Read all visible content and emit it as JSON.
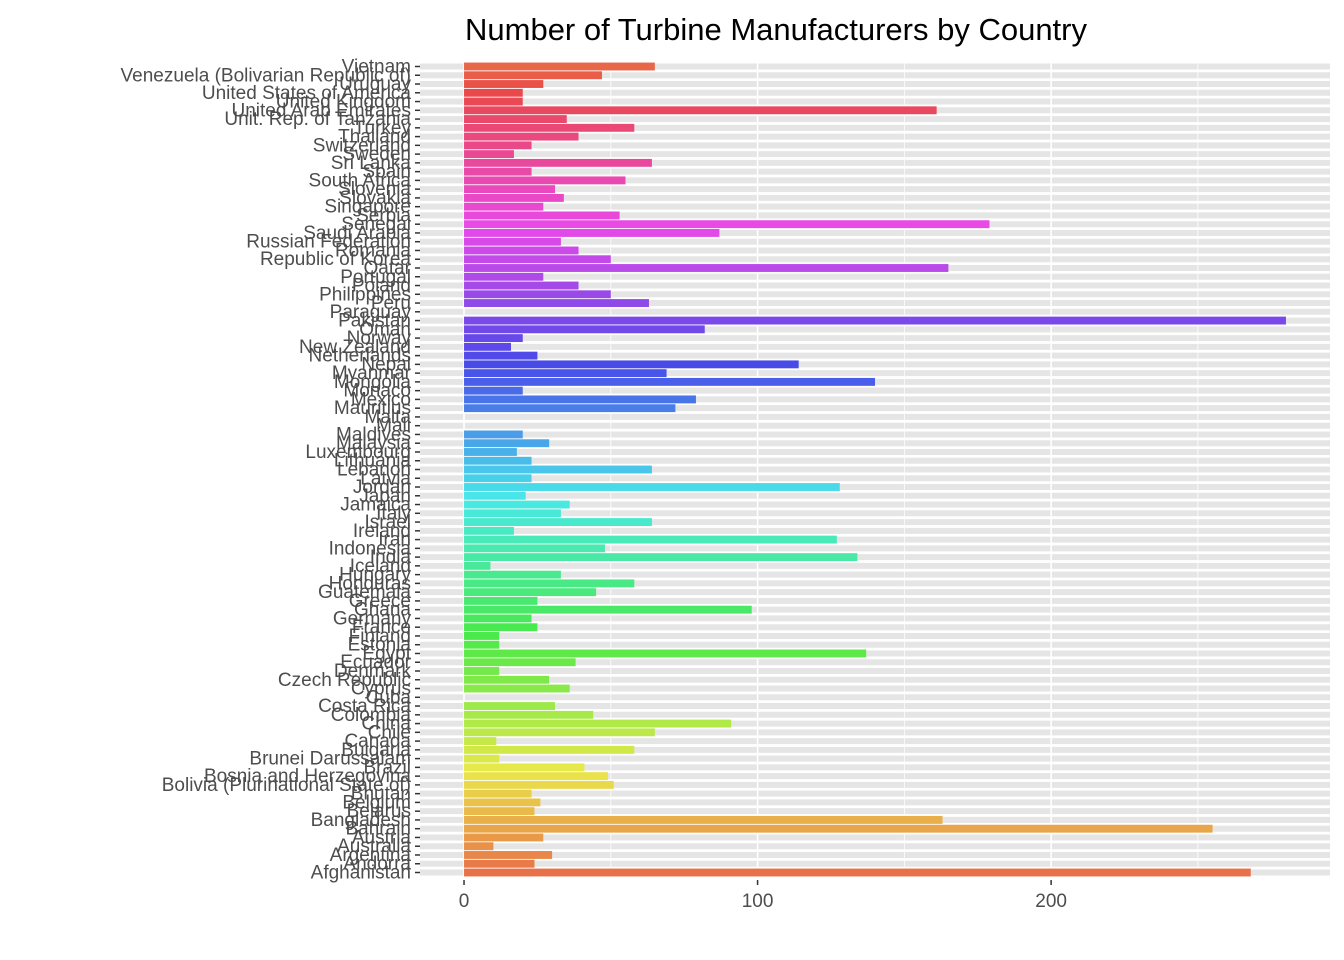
{
  "chart_data": {
    "type": "bar",
    "orientation": "horizontal",
    "title": "Number of Turbine Manufacturers by Country",
    "xlabel": "",
    "ylabel": "",
    "xlim": [
      -15,
      295
    ],
    "xticks": [
      0,
      100,
      200
    ],
    "grid": true,
    "legend": "none",
    "categories": [
      "Afghanistan",
      "Andorra",
      "Argentina",
      "Australia",
      "Austria",
      "Bahrain",
      "Bangladesh",
      "Belarus",
      "Belgium",
      "Bhutan",
      "Bolivia (Plurinational State of)",
      "Bosnia and Herzegovina",
      "Brazil",
      "Brunei Darussalam",
      "Bulgaria",
      "Canada",
      "Chile",
      "China",
      "Colombia",
      "Costa Rica",
      "Cuba",
      "Cyprus",
      "Czech Republic",
      "Denmark",
      "Ecuador",
      "Egypt",
      "Estonia",
      "Finland",
      "France",
      "Germany",
      "Ghana",
      "Greece",
      "Guatemala",
      "Honduras",
      "Hungary",
      "Iceland",
      "India",
      "Indonesia",
      "Iran",
      "Ireland",
      "Israel",
      "Italy",
      "Jamaica",
      "Japan",
      "Jordan",
      "Latvia",
      "Lebanon",
      "Lithuania",
      "Luxembourg",
      "Malaysia",
      "Maldives",
      "Mali",
      "Malta",
      "Mauritius",
      "Mexico",
      "Monaco",
      "Mongolia",
      "Myanmar",
      "Nepal",
      "Netherlands",
      "New Zealand",
      "Norway",
      "Oman",
      "Pakistan",
      "Paraguay",
      "Peru",
      "Philippines",
      "Poland",
      "Portugal",
      "Qatar",
      "Republic of Korea",
      "Romania",
      "Russian Federation",
      "Saudi Arabia",
      "Senegal",
      "Serbia",
      "Singapore",
      "Slovakia",
      "Slovenia",
      "South Africa",
      "Spain",
      "Sri Lanka",
      "Sweden",
      "Switzerland",
      "Thailand",
      "Turkey",
      "Unit. Rep. of Tanzania",
      "United Arab Emirates",
      "United Kingdom",
      "United States of America",
      "Uruguay",
      "Venezuela (Bolivarian Republic of)",
      "Vietnam"
    ],
    "values": [
      268,
      24,
      30,
      10,
      27,
      255,
      163,
      24,
      26,
      23,
      51,
      49,
      41,
      12,
      58,
      11,
      65,
      91,
      44,
      31,
      0,
      36,
      29,
      12,
      38,
      137,
      12,
      12,
      25,
      23,
      98,
      25,
      45,
      58,
      33,
      9,
      134,
      48,
      127,
      17,
      64,
      33,
      36,
      21,
      128,
      23,
      64,
      23,
      18,
      29,
      20,
      0,
      0,
      72,
      79,
      20,
      140,
      69,
      114,
      25,
      16,
      20,
      82,
      280,
      0,
      63,
      50,
      39,
      27,
      165,
      50,
      39,
      33,
      87,
      179,
      53,
      27,
      34,
      31,
      55,
      23,
      64,
      17,
      23,
      39,
      58,
      35,
      161,
      20,
      20,
      27,
      47,
      65
    ],
    "colors": [
      "#F8766D",
      "#F37B59",
      "#ED8141",
      "#E7861B",
      "#E08B00",
      "#D89000",
      "#CF9400",
      "#C59900",
      "#BB9D00",
      "#B0A100",
      "#A3A500",
      "#95A900",
      "#86AC00",
      "#74AF00",
      "#5EB300",
      "#3FB500",
      "#00B813",
      "#00BA38",
      "#00BC4E",
      "#00BD61",
      "#00BF72",
      "#00C081",
      "#00C08F",
      "#00C19C",
      "#00C1A9",
      "#00C0B5",
      "#00BFC0",
      "#00BECB",
      "#00BCD5",
      "#00B9DE",
      "#00B6E7",
      "#00B2EF",
      "#00ADF6",
      "#00A8FC",
      "#35A2FF",
      "#619CFF",
      "#7D96FF",
      "#928EFF",
      "#A587FF",
      "#B57FFF",
      "#C37CFF",
      "#CF78FF",
      "#DA74FF",
      "#E36EFA",
      "#EB69F3",
      "#F263EB",
      "#F85FE2",
      "#FC5CD8",
      "#FF5BCD",
      "#FF5BC1",
      "#FF5DB4",
      "#FF60A6",
      "#FF6498",
      "#FF6689",
      "#FF6A7A",
      "#F8766D",
      "#F8766D",
      "#F8766D",
      "#F8766D",
      "#F8766D",
      "#F8766D",
      "#F8766D",
      "#F8766D",
      "#F8766D",
      "#F8766D",
      "#F8766D",
      "#F8766D",
      "#F8766D",
      "#F8766D",
      "#F8766D",
      "#F8766D",
      "#F8766D",
      "#F8766D",
      "#F8766D",
      "#F8766D",
      "#F8766D",
      "#F8766D",
      "#F8766D",
      "#F8766D",
      "#F8766D",
      "#F8766D",
      "#F8766D",
      "#F8766D",
      "#F8766D",
      "#F8766D",
      "#F8766D",
      "#F8766D",
      "#F8766D",
      "#F8766D",
      "#F8766D",
      "#F8766D",
      "#F8766D",
      "#F8766D"
    ]
  }
}
